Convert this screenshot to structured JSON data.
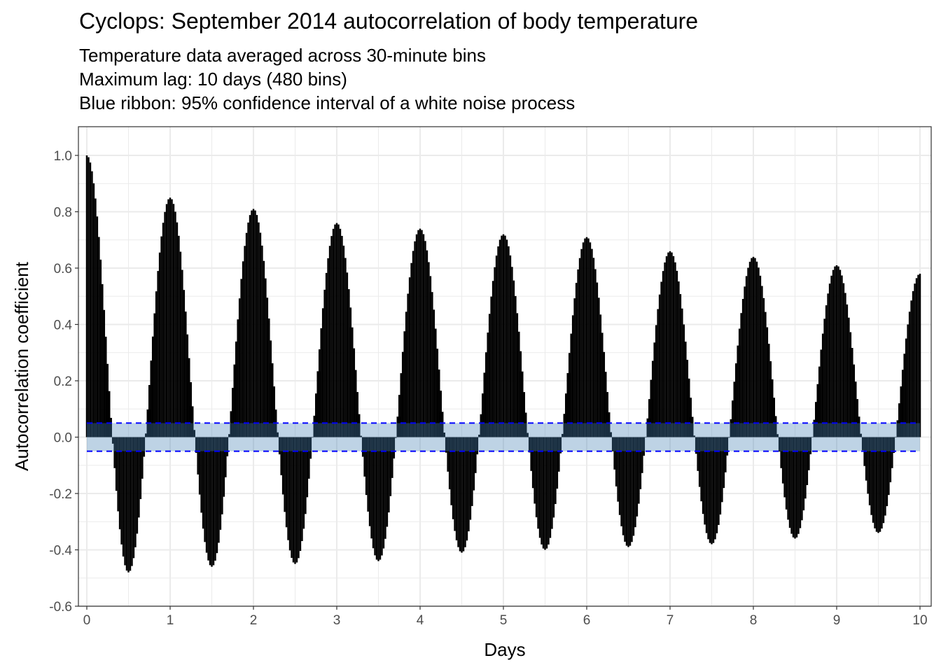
{
  "chart_data": {
    "type": "bar",
    "title": "Cyclops: September 2014 autocorrelation of body temperature",
    "subtitle": [
      "Temperature data averaged across 30-minute bins",
      "Maximum lag: 10 days (480 bins)",
      "Blue ribbon: 95% confidence interval of a white noise process"
    ],
    "xlabel": "Days",
    "ylabel": "Autocorrelation coefficient",
    "xlim": [
      0,
      10
    ],
    "ylim": [
      -0.6,
      1.0
    ],
    "x_ticks": [
      "0",
      "1",
      "2",
      "3",
      "4",
      "5",
      "6",
      "7",
      "8",
      "9",
      "10"
    ],
    "y_ticks": [
      "1.0",
      "0.8",
      "0.6",
      "0.4",
      "0.2",
      "0.0",
      "-0.2",
      "-0.4",
      "-0.6"
    ],
    "grid": true,
    "confidence_interval": [
      -0.05,
      0.05
    ],
    "bins_per_day": 48,
    "max_lag_bins": 480,
    "peaks": [
      {
        "day": 0,
        "value": 1.0
      },
      {
        "day": 1,
        "value": 0.85
      },
      {
        "day": 2,
        "value": 0.81
      },
      {
        "day": 3,
        "value": 0.76
      },
      {
        "day": 4,
        "value": 0.74
      },
      {
        "day": 5,
        "value": 0.72
      },
      {
        "day": 6,
        "value": 0.71
      },
      {
        "day": 7,
        "value": 0.66
      },
      {
        "day": 8,
        "value": 0.64
      },
      {
        "day": 9,
        "value": 0.61
      },
      {
        "day": 10,
        "value": 0.58
      }
    ],
    "troughs": [
      {
        "day": 0.5,
        "value": -0.48
      },
      {
        "day": 1.5,
        "value": -0.46
      },
      {
        "day": 2.5,
        "value": -0.45
      },
      {
        "day": 3.5,
        "value": -0.44
      },
      {
        "day": 4.5,
        "value": -0.41
      },
      {
        "day": 5.5,
        "value": -0.4
      },
      {
        "day": 6.5,
        "value": -0.39
      },
      {
        "day": 7.5,
        "value": -0.38
      },
      {
        "day": 8.5,
        "value": -0.36
      },
      {
        "day": 9.5,
        "value": -0.34
      }
    ],
    "colors": {
      "bars": "#000000",
      "ribbon": "#4682b4",
      "ci_line": "#0000ff",
      "grid": "#ebebeb",
      "panel_border": "#333333"
    }
  }
}
